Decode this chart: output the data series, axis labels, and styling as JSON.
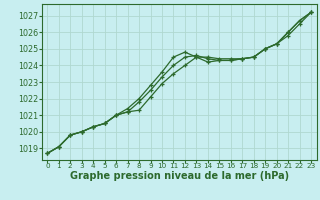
{
  "bg_color": "#c8eef0",
  "grid_color": "#b0d8d0",
  "line_color": "#2d6a2d",
  "xlabel": "Graphe pression niveau de la mer (hPa)",
  "xlabel_fontsize": 7.0,
  "xtick_fontsize": 5.2,
  "ytick_fontsize": 5.8,
  "xlim": [
    -0.5,
    23.5
  ],
  "ylim": [
    1018.3,
    1027.7
  ],
  "yticks": [
    1019,
    1020,
    1021,
    1022,
    1023,
    1024,
    1025,
    1026,
    1027
  ],
  "xticks": [
    0,
    1,
    2,
    3,
    4,
    5,
    6,
    7,
    8,
    9,
    10,
    11,
    12,
    13,
    14,
    15,
    16,
    17,
    18,
    19,
    20,
    21,
    22,
    23
  ],
  "series1_x": [
    0,
    1,
    2,
    3,
    4,
    5,
    6,
    7,
    8,
    9,
    10,
    11,
    12,
    13,
    14,
    15,
    16,
    17,
    18,
    19,
    20,
    21,
    22,
    23
  ],
  "series1_y": [
    1018.7,
    1019.1,
    1019.8,
    1020.0,
    1020.3,
    1020.5,
    1021.0,
    1021.2,
    1021.3,
    1022.1,
    1022.9,
    1023.5,
    1024.0,
    1024.5,
    1024.5,
    1024.4,
    1024.4,
    1024.4,
    1024.5,
    1025.0,
    1025.3,
    1026.0,
    1026.7,
    1027.2
  ],
  "series2_x": [
    0,
    1,
    2,
    3,
    4,
    5,
    6,
    7,
    8,
    9,
    10,
    11,
    12,
    13,
    14,
    15,
    16,
    17,
    18,
    19,
    20,
    21,
    22,
    23
  ],
  "series2_y": [
    1018.7,
    1019.1,
    1019.8,
    1020.0,
    1020.3,
    1020.5,
    1021.0,
    1021.2,
    1021.8,
    1022.5,
    1023.3,
    1024.0,
    1024.5,
    1024.6,
    1024.4,
    1024.3,
    1024.3,
    1024.4,
    1024.5,
    1025.0,
    1025.3,
    1026.0,
    1026.7,
    1027.2
  ],
  "series3_x": [
    0,
    1,
    2,
    3,
    4,
    5,
    6,
    7,
    8,
    9,
    10,
    11,
    12,
    13,
    14,
    15,
    16,
    17,
    18,
    19,
    20,
    21,
    22,
    23
  ],
  "series3_y": [
    1018.7,
    1019.1,
    1019.8,
    1020.0,
    1020.3,
    1020.5,
    1021.0,
    1021.4,
    1022.0,
    1022.8,
    1023.6,
    1024.5,
    1024.8,
    1024.5,
    1024.2,
    1024.3,
    1024.3,
    1024.4,
    1024.5,
    1025.0,
    1025.3,
    1025.8,
    1026.5,
    1027.2
  ]
}
